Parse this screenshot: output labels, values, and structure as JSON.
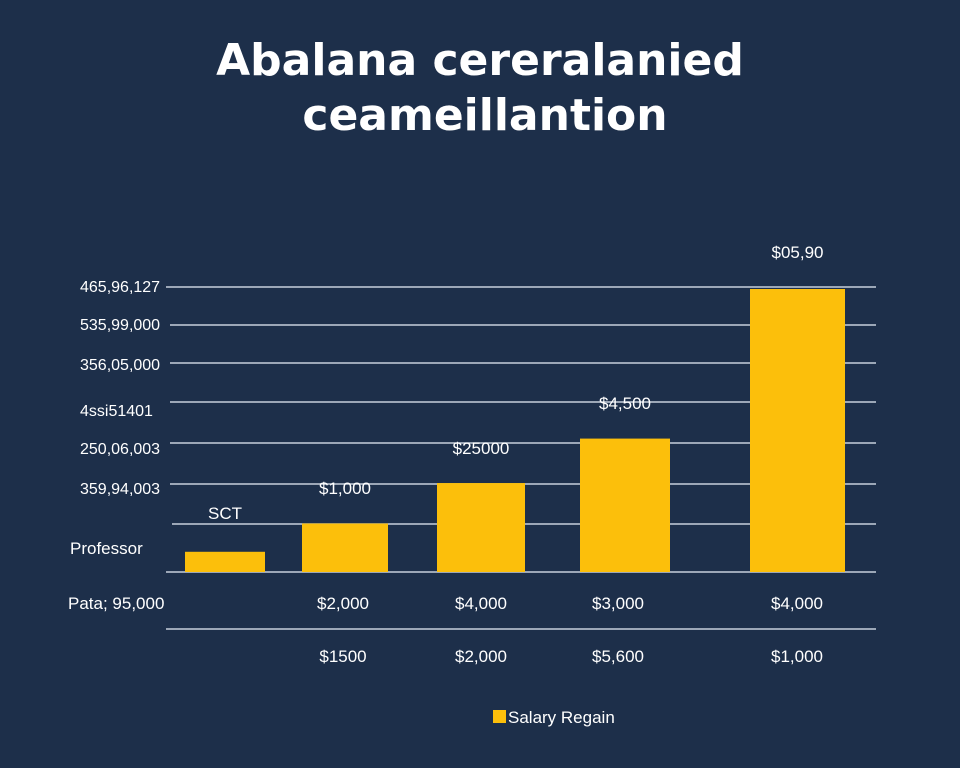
{
  "chart_data": {
    "type": "bar",
    "title_lines": [
      "Abalana cereralanied",
      "ceameillantion"
    ],
    "y_tick_labels": [
      "465,96,127",
      "535,99,000",
      "356,05,000",
      "4ssi51401",
      "250,06,003",
      "359,94,003"
    ],
    "category_labels": [
      "SCT",
      "Professor"
    ],
    "ylim": [
      0,
      700
    ],
    "categories": [
      "SCT",
      "",
      "",
      "",
      ""
    ],
    "values": [
      50,
      120,
      220,
      330,
      700
    ],
    "data_labels": [
      "",
      "$1,000",
      "$25000",
      "$4,500",
      "$05,90"
    ],
    "table_rows": [
      {
        "label": "Pata; 95,000",
        "cells": [
          "",
          "$2,000",
          "$4,000",
          "$3,000",
          "$4,000"
        ]
      },
      {
        "label": "",
        "cells": [
          "",
          "$1500",
          "$2,000",
          "$5,600",
          "$1,000"
        ]
      }
    ],
    "legend": [
      "Salary Regain"
    ],
    "grid": true,
    "colors": {
      "background": "#1d2f4a",
      "bar": "#fcbf0b",
      "grid": "#c7cfdb",
      "text": "#ffffff"
    }
  }
}
